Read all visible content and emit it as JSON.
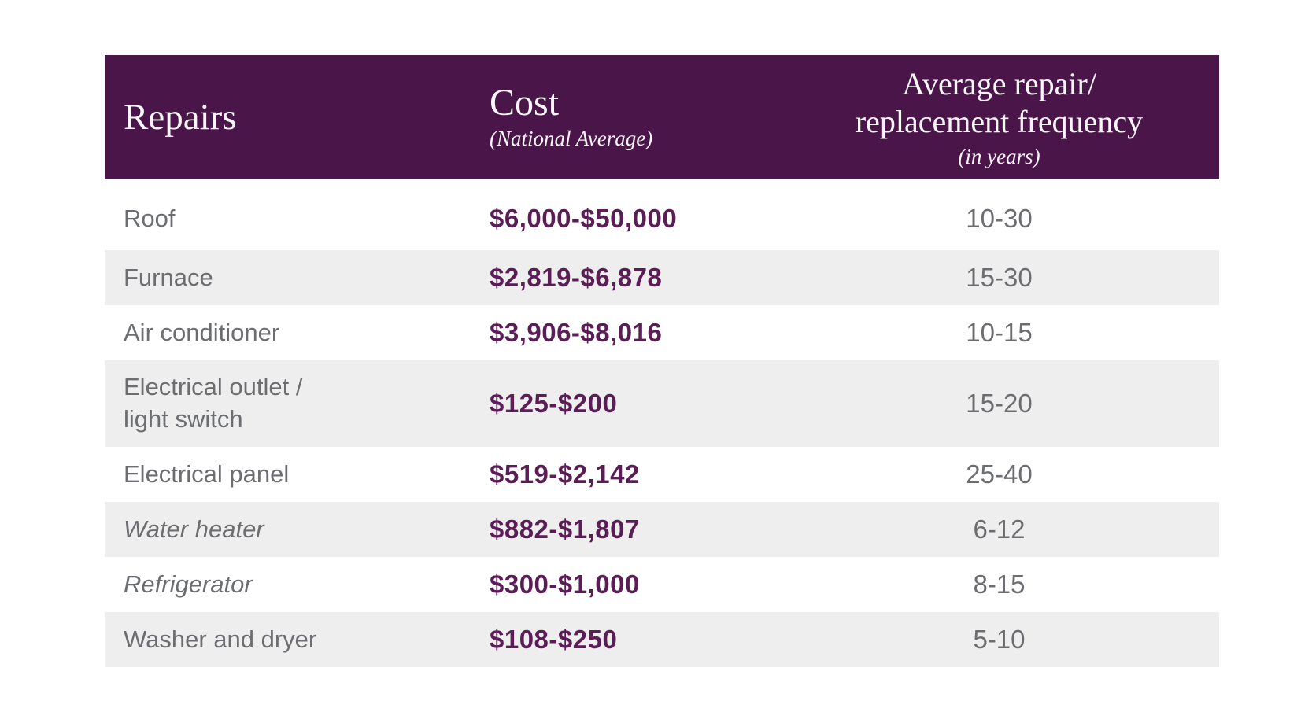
{
  "table": {
    "header": {
      "repairs": {
        "title": "Repairs"
      },
      "cost": {
        "title": "Cost",
        "subtitle": "(National Average)"
      },
      "frequency": {
        "title_line1": "Average repair/",
        "title_line2": "replacement frequency",
        "subtitle": "(in years)"
      }
    },
    "rows": [
      {
        "repair": "Roof",
        "cost": "$6,000-$50,000",
        "years": "10-30"
      },
      {
        "repair": "Furnace",
        "cost": "$2,819-$6,878",
        "years": "15-30"
      },
      {
        "repair": "Air conditioner",
        "cost": "$3,906-$8,016",
        "years": "10-15"
      },
      {
        "repair": "Electrical outlet /\nlight switch",
        "cost": "$125-$200",
        "years": "15-20"
      },
      {
        "repair": "Electrical panel",
        "cost": "$519-$2,142",
        "years": "25-40"
      },
      {
        "repair": "Water heater",
        "cost": "$882-$1,807",
        "years": "6-12"
      },
      {
        "repair": "Refrigerator",
        "cost": "$300-$1,000",
        "years": "8-15"
      },
      {
        "repair": "Washer and dryer",
        "cost": "$108-$250",
        "years": "5-10"
      }
    ]
  },
  "colors": {
    "header-bg": "#4A1649",
    "header-text": "#FAF6FA",
    "cost-text": "#5B1D56",
    "body-text": "#6C6D70",
    "stripe-bg": "#EEEEEE",
    "page-bg": "#FFFFFF"
  }
}
